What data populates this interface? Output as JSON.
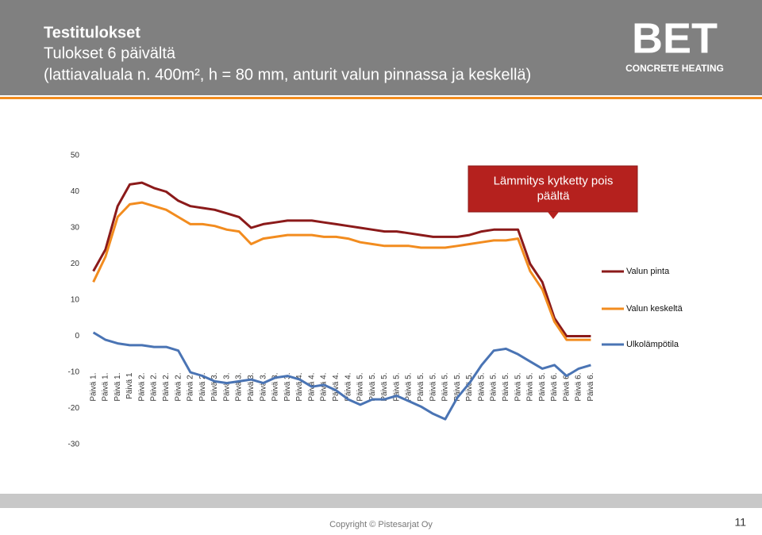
{
  "header": {
    "title": "Testitulokset",
    "subtitle": [
      "Tulokset 6 päivältä",
      "(lattiavaluala n. 400m², h = 80 mm, anturit valun pinnassa ja keskellä)"
    ]
  },
  "logo": {
    "brand": "BET",
    "tagline": "CONCRETE HEATING"
  },
  "footer": {
    "copyright": "Copyright © Pistesarjat Oy",
    "page": "11"
  },
  "chart_data": {
    "type": "line",
    "categories": [
      "Päivä 1.",
      "Päivä 1.",
      "Päivä 1.",
      "Päivä 1",
      "Päivä 2.",
      "Päivä 2.",
      "Päivä 2.",
      "Päivä 2.",
      "Päivä 2.",
      "Päivä 2.",
      "Päivä 3.",
      "Päivä 3.",
      "Päivä 3.",
      "Päivä 3.",
      "Päivä 3.",
      "Päivä 3.",
      "Päivä 3.",
      "Päivä 4.",
      "Päivä 4.",
      "Päivä 4.",
      "Päivä 4.",
      "Päivä 4.",
      "Päivä 5.",
      "Päivä 5.",
      "Päivä 5.",
      "Päivä 5.",
      "Päivä 5.",
      "Päivä 5.",
      "Päivä 5.",
      "Päivä 5.",
      "Päivä 5.",
      "Päivä 5.",
      "Päivä 5.",
      "Päivä 5.",
      "Päivä 5.",
      "Päivä 5.",
      "Päivä 5.",
      "Päivä 5.",
      "Päivä 6.",
      "Päivä 6.",
      "Päivä 6.",
      "Päivä 6."
    ],
    "series": [
      {
        "name": "Valun pinta",
        "color": "#8b1a1a",
        "values": [
          18,
          24,
          36,
          42,
          42.5,
          41,
          40,
          37.5,
          36,
          35.5,
          35,
          34,
          33,
          30,
          31,
          31.5,
          32,
          32,
          32,
          31.5,
          31,
          30.5,
          30,
          29.5,
          29,
          29,
          28.5,
          28,
          27.5,
          27.5,
          27.5,
          28,
          29,
          29.5,
          29.5,
          29.5,
          20,
          15,
          5,
          0,
          0,
          0
        ]
      },
      {
        "name": "Valun keskeltä",
        "color": "#f28c1f",
        "values": [
          15,
          22,
          33,
          36.5,
          37,
          36,
          35,
          33,
          31,
          31,
          30.5,
          29.5,
          29,
          25.5,
          27,
          27.5,
          28,
          28,
          28,
          27.5,
          27.5,
          27,
          26,
          25.5,
          25,
          25,
          25,
          24.5,
          24.5,
          24.5,
          25,
          25.5,
          26,
          26.5,
          26.5,
          27,
          18,
          13,
          4,
          -1,
          -1,
          -1
        ]
      },
      {
        "name": "Ulkolämpötila",
        "color": "#4a74b4",
        "values": [
          1,
          -1,
          -2,
          -2.5,
          -2.5,
          -3,
          -3,
          -4,
          -10,
          -11,
          -12.5,
          -13,
          -12.5,
          -12,
          -13,
          -11.5,
          -11,
          -12,
          -14,
          -13.5,
          -15,
          -17.5,
          -19,
          -17.5,
          -17.5,
          -16.5,
          -18,
          -19.5,
          -21.5,
          -23,
          -17,
          -13,
          -8,
          -4,
          -3.5,
          -5,
          -7,
          -9,
          -8,
          -11,
          -9,
          -8
        ]
      }
    ],
    "ylim": [
      -30,
      50
    ],
    "yticks": [
      -30,
      -20,
      -10,
      0,
      10,
      20,
      30,
      40,
      50
    ],
    "grid": false,
    "legend": "right",
    "annotation": "Lämmitys kytketty pois päältä"
  }
}
